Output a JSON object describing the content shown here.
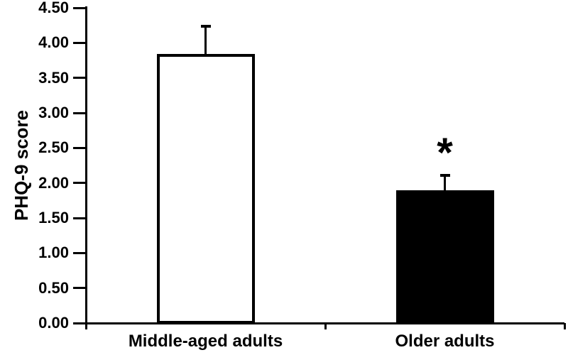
{
  "figure": {
    "background": "#ffffff",
    "ink_color": "#000000"
  },
  "chart_data": {
    "type": "bar",
    "title": "",
    "xlabel": "",
    "ylabel": "PHQ-9 score",
    "categories": [
      "Middle-aged adults",
      "Older adults"
    ],
    "series": [
      {
        "name": "PHQ-9 score",
        "values": [
          3.84,
          1.9
        ],
        "errors_plus": [
          0.4,
          0.21
        ],
        "fill_colors": [
          "#ffffff",
          "#000000"
        ],
        "border_color": "#000000"
      }
    ],
    "ylim": [
      0,
      4.5
    ],
    "ytick_step": 0.5,
    "ytick_labels": [
      "0.00",
      "0.50",
      "1.00",
      "1.50",
      "2.00",
      "2.50",
      "3.00",
      "3.50",
      "4.00",
      "4.50"
    ],
    "grid": false,
    "legend_position": "none",
    "annotations": [
      {
        "text": "*",
        "category_index": 1,
        "y": 2.5
      }
    ]
  }
}
